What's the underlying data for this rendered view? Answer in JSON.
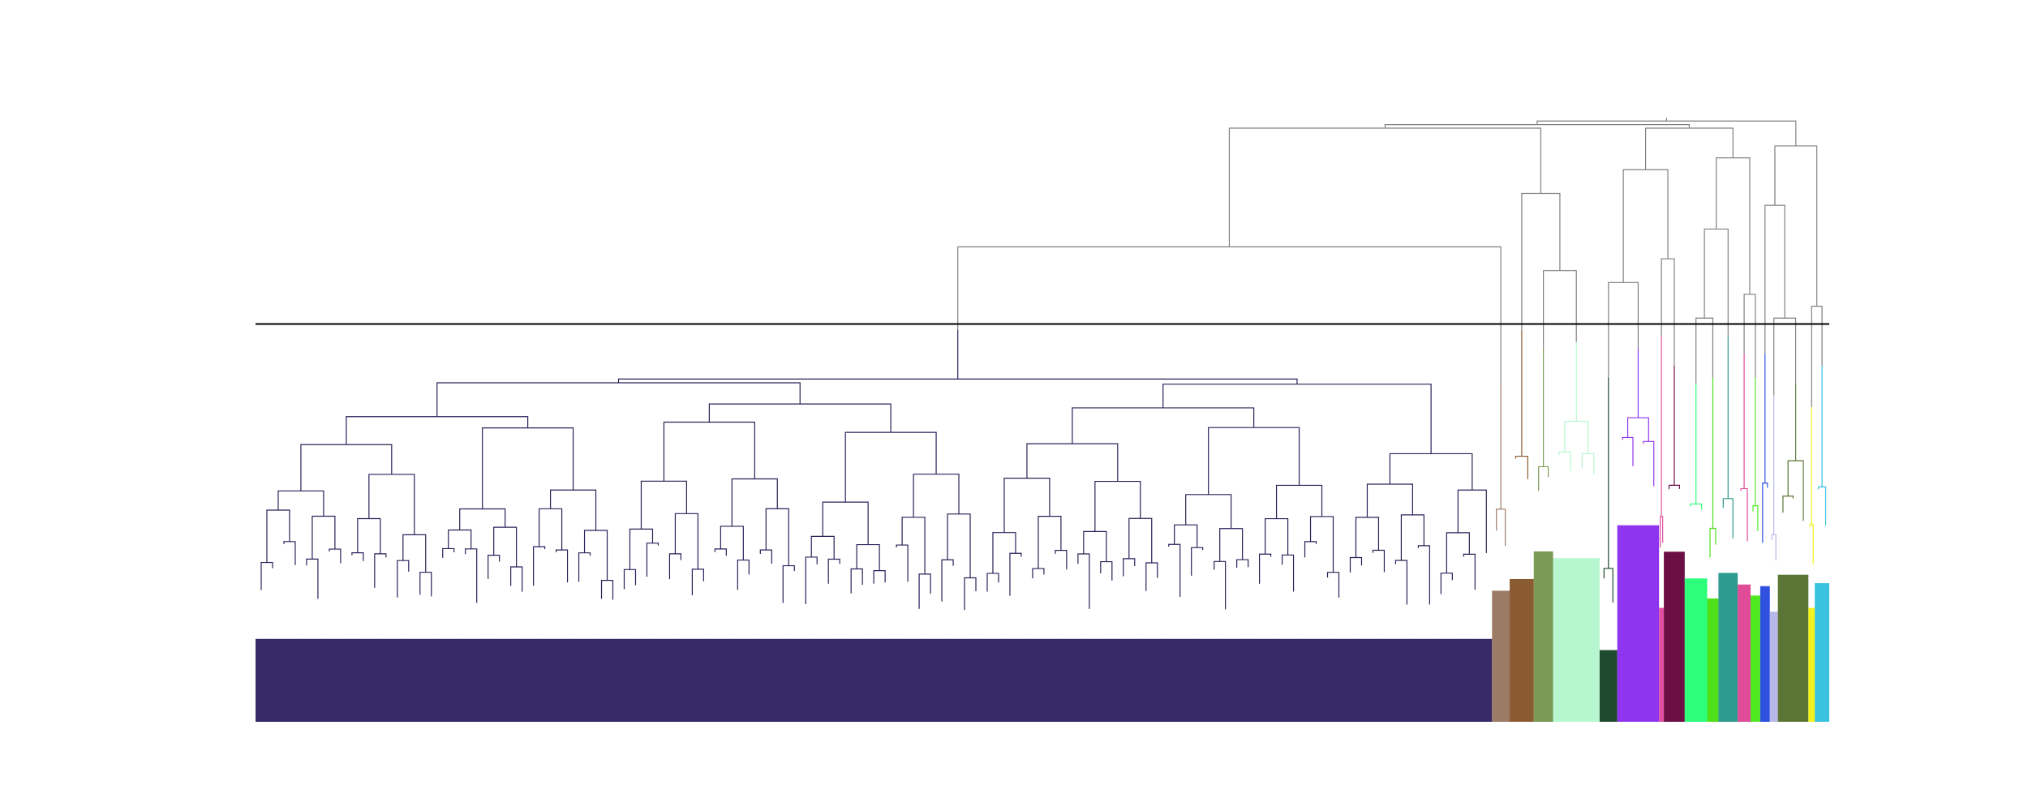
{
  "figure": {
    "type": "dendrogram",
    "title": "",
    "xlabel": "",
    "ylabel": "",
    "axes_visible": false,
    "threshold_line": true,
    "colors": {
      "background": "#ffffff",
      "above_threshold": "#808080",
      "threshold_line": "#000000"
    }
  },
  "chart_data": {
    "type": "dendrogram",
    "orientation": "top-down",
    "leaf_labels_visible": false,
    "axes_visible": false,
    "height_range": [
      0,
      1
    ],
    "threshold_height": 0.67,
    "root_height": 1.0,
    "cluster_count": 19,
    "clusters": [
      {
        "id": 1,
        "color": "#372a68",
        "size": 0.77,
        "top": 0.66,
        "merge_heights": [
          0.15,
          0.3,
          0.43,
          0.52,
          0.61
        ]
      },
      {
        "id": 2,
        "color": "#9b7a66",
        "size": 0.011,
        "top": 0.57,
        "merge_heights": [
          0.25,
          0.4
        ]
      },
      {
        "id": 3,
        "color": "#8a5a30",
        "size": 0.015,
        "top": 0.66,
        "merge_heights": [
          0.28,
          0.45,
          0.56
        ]
      },
      {
        "id": 4,
        "color": "#7a9a55",
        "size": 0.012,
        "top": 0.63,
        "merge_heights": [
          0.3,
          0.45,
          0.55
        ]
      },
      {
        "id": 5,
        "color": "#b7f7cf",
        "size": 0.029,
        "top": 0.64,
        "merge_heights": [
          0.32,
          0.48,
          0.58
        ]
      },
      {
        "id": 6,
        "color": "#1e4a30",
        "size": 0.011,
        "top": 0.58,
        "merge_heights": [
          0.15,
          0.28,
          0.38
        ]
      },
      {
        "id": 7,
        "color": "#9035ef",
        "size": 0.026,
        "top": 0.63,
        "merge_heights": [
          0.35,
          0.48,
          0.55
        ]
      },
      {
        "id": 8,
        "color": "#e0509e",
        "size": 0.003,
        "top": 0.65,
        "merge_heights": [
          0.2,
          0.4
        ]
      },
      {
        "id": 9,
        "color": "#6b0f45",
        "size": 0.013,
        "top": 0.6,
        "merge_heights": [
          0.3,
          0.42,
          0.52
        ]
      },
      {
        "id": 10,
        "color": "#2dff7a",
        "size": 0.014,
        "top": 0.57,
        "merge_heights": [
          0.25,
          0.38,
          0.48
        ]
      },
      {
        "id": 11,
        "color": "#4fe01a",
        "size": 0.007,
        "top": 0.58,
        "merge_heights": [
          0.25,
          0.4
        ]
      },
      {
        "id": 12,
        "color": "#2e9a90",
        "size": 0.012,
        "top": 0.65,
        "merge_heights": [
          0.28,
          0.42,
          0.55
        ]
      },
      {
        "id": 13,
        "color": "#e04c97",
        "size": 0.008,
        "top": 0.62,
        "merge_heights": [
          0.25,
          0.4
        ]
      },
      {
        "id": 14,
        "color": "#50e820",
        "size": 0.006,
        "top": 0.58,
        "merge_heights": [
          0.25,
          0.38
        ]
      },
      {
        "id": 15,
        "color": "#3050e0",
        "size": 0.006,
        "top": 0.62,
        "merge_heights": [
          0.25,
          0.42
        ]
      },
      {
        "id": 16,
        "color": "#b8b8e8",
        "size": 0.005,
        "top": 0.55,
        "merge_heights": [
          0.2,
          0.35
        ]
      },
      {
        "id": 17,
        "color": "#5a7535",
        "size": 0.019,
        "top": 0.57,
        "merge_heights": [
          0.27,
          0.4,
          0.5
        ]
      },
      {
        "id": 18,
        "color": "#f2f21e",
        "size": 0.004,
        "top": 0.53,
        "merge_heights": [
          0.2,
          0.35
        ]
      },
      {
        "id": 19,
        "color": "#38c2e0",
        "size": 0.009,
        "top": 0.6,
        "merge_heights": [
          0.25,
          0.4,
          0.5
        ]
      }
    ],
    "upper_merges": [
      0.68,
      0.68,
      0.7,
      0.72,
      0.74,
      0.76,
      0.78,
      0.8,
      0.83,
      0.87,
      0.89,
      0.93,
      0.95,
      0.97,
      1.0
    ]
  }
}
